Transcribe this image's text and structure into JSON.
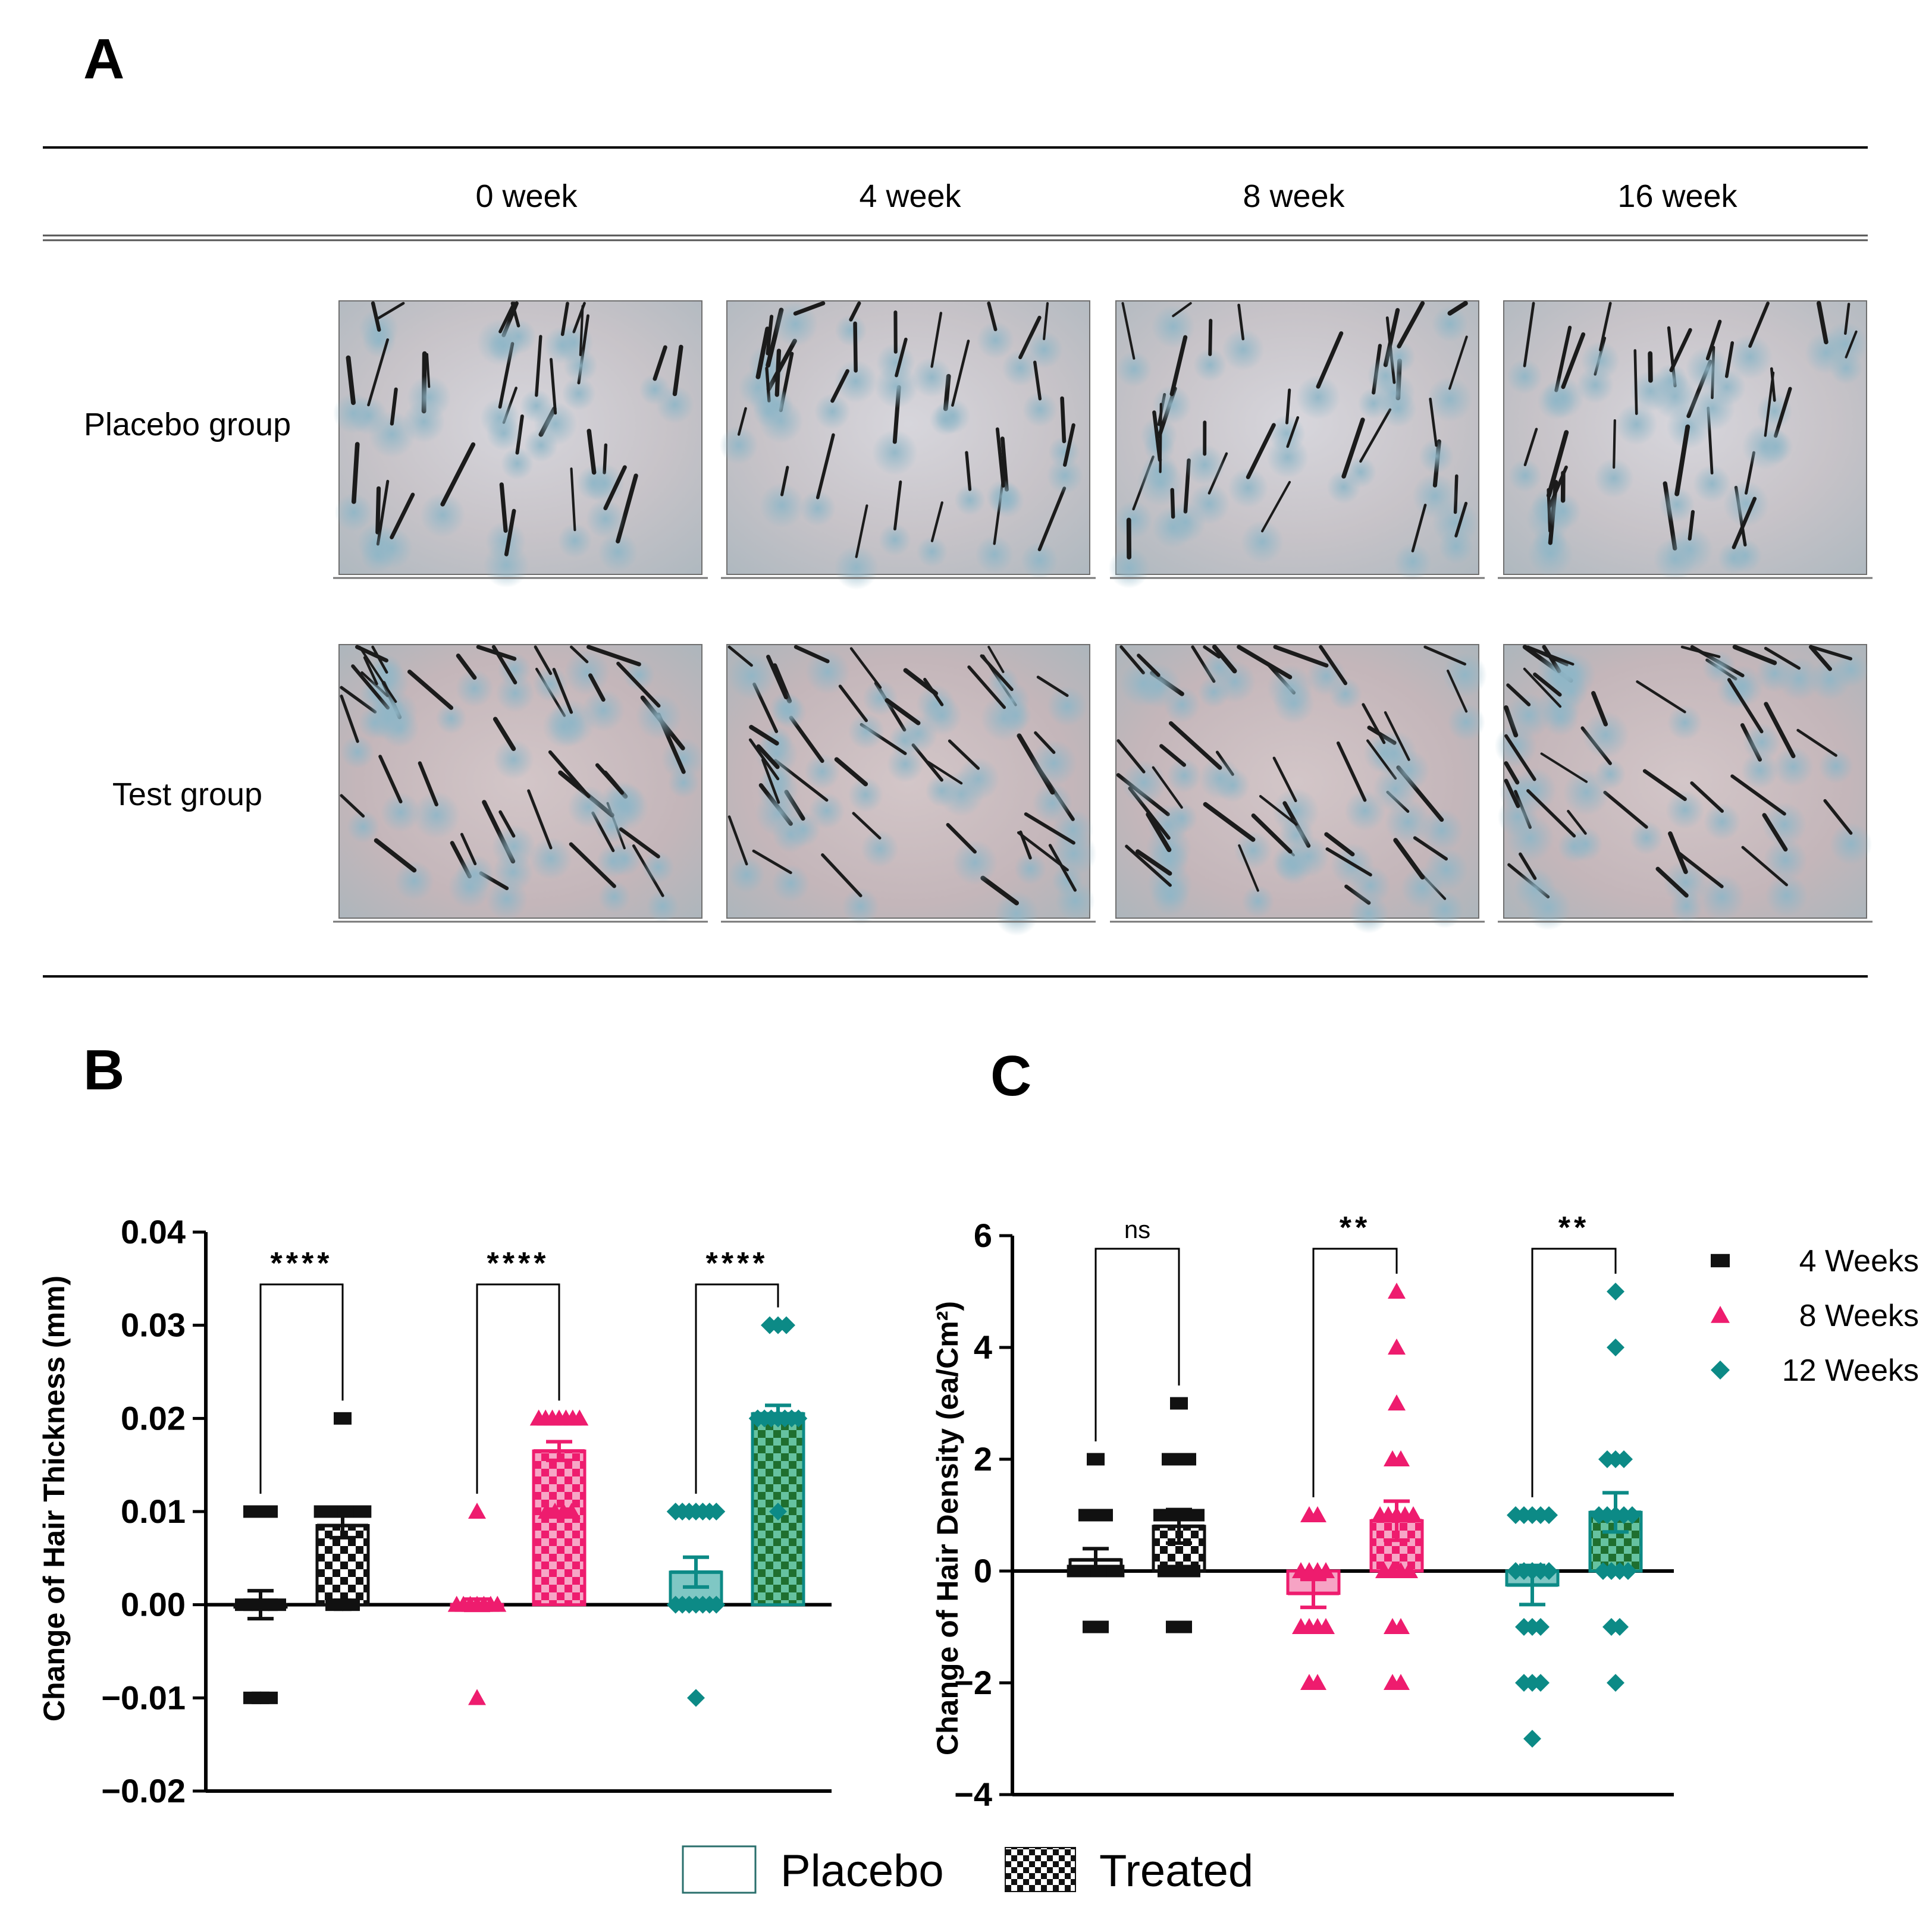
{
  "panel_a": {
    "letter": "A",
    "columns": [
      "0 week",
      "4 week",
      "8 week",
      "16 week"
    ],
    "rows": [
      "Placebo group",
      "Test group"
    ]
  },
  "panel_b": {
    "letter": "B"
  },
  "panel_c": {
    "letter": "C"
  },
  "colors": {
    "w4": "#111111",
    "w8": "#ee1c6e",
    "w12": "#0c8a86"
  },
  "chart_data": [
    {
      "type": "bar",
      "panel": "B",
      "ylabel": "Change of Hair Thickness (mm)",
      "ylim": [
        -0.02,
        0.04
      ],
      "yticks": [
        -0.02,
        -0.01,
        0.0,
        0.01,
        0.02,
        0.03,
        0.04
      ],
      "ytick_labels": [
        "−0.02",
        "−0.01",
        "0.00",
        "0.01",
        "0.02",
        "0.03",
        "0.04"
      ],
      "groups": [
        {
          "series": "4 Weeks",
          "color": "w4",
          "significance": "****",
          "bars": [
            {
              "condition": "Placebo",
              "mean": 0.0,
              "sem": 0.0015,
              "points": [
                0.01,
                0.01,
                0.01,
                0.0,
                0.0,
                0.0,
                0.0,
                0.0,
                -0.01,
                -0.01,
                -0.01
              ]
            },
            {
              "condition": "Treated",
              "mean": 0.0085,
              "sem": 0.0013,
              "points": [
                0.02,
                0.01,
                0.01,
                0.01,
                0.01,
                0.01,
                0.01,
                0.0,
                0.0,
                0.0
              ]
            }
          ]
        },
        {
          "series": "8 Weeks",
          "color": "w8",
          "significance": "****",
          "bars": [
            {
              "condition": "Placebo",
              "mean": 0.0,
              "sem": 0.0006,
              "points": [
                0.01,
                0.0,
                0.0,
                0.0,
                0.0,
                0.0,
                0.0,
                0.0,
                -0.01
              ]
            },
            {
              "condition": "Treated",
              "mean": 0.0165,
              "sem": 0.001,
              "points": [
                0.02,
                0.02,
                0.02,
                0.02,
                0.02,
                0.02,
                0.02,
                0.01,
                0.01,
                0.01,
                0.01
              ]
            }
          ]
        },
        {
          "series": "12 Weeks",
          "color": "w12",
          "significance": "****",
          "bars": [
            {
              "condition": "Placebo",
              "mean": 0.0035,
              "sem": 0.0016,
              "points": [
                0.01,
                0.01,
                0.01,
                0.01,
                0.01,
                0.01,
                0.01,
                0.0,
                0.0,
                0.0,
                0.0,
                0.0,
                0.0,
                0.0,
                -0.01
              ]
            },
            {
              "condition": "Treated",
              "mean": 0.0205,
              "sem": 0.0009,
              "points": [
                0.03,
                0.03,
                0.03,
                0.02,
                0.02,
                0.02,
                0.02,
                0.02,
                0.02,
                0.02,
                0.01
              ]
            }
          ]
        }
      ]
    },
    {
      "type": "bar",
      "panel": "C",
      "ylabel": "Change of  Hair Density (ea/Cm²)",
      "ylim": [
        -4,
        6
      ],
      "yticks": [
        -4,
        -2,
        0,
        2,
        4,
        6
      ],
      "ytick_labels": [
        "−4",
        "−2",
        "0",
        "2",
        "4",
        "6"
      ],
      "legend_position": "right",
      "groups": [
        {
          "series": "4 Weeks",
          "color": "w4",
          "significance": "ns",
          "bars": [
            {
              "condition": "Placebo",
              "mean": 0.2,
              "sem": 0.2,
              "points": [
                2,
                1,
                1,
                1,
                0,
                0,
                0,
                0,
                0,
                0,
                -1,
                -1
              ]
            },
            {
              "condition": "Treated",
              "mean": 0.8,
              "sem": 0.3,
              "points": [
                3,
                2,
                2,
                2,
                1,
                1,
                1,
                1,
                1,
                0,
                0,
                0,
                0,
                -1,
                -1
              ]
            }
          ]
        },
        {
          "series": "8 Weeks",
          "color": "w8",
          "significance": "**",
          "bars": [
            {
              "condition": "Placebo",
              "mean": -0.4,
              "sem": 0.25,
              "points": [
                1,
                1,
                0,
                0,
                0,
                0,
                -1,
                -1,
                -1,
                -1,
                -2,
                -2
              ]
            },
            {
              "condition": "Treated",
              "mean": 0.9,
              "sem": 0.35,
              "points": [
                5,
                4,
                3,
                2,
                2,
                1,
                1,
                1,
                1,
                1,
                0,
                0,
                0,
                0,
                -1,
                -1,
                -2,
                -2
              ]
            }
          ]
        },
        {
          "series": "12 Weeks",
          "color": "w12",
          "significance": "**",
          "bars": [
            {
              "condition": "Placebo",
              "mean": -0.25,
              "sem": 0.35,
              "points": [
                1,
                1,
                1,
                1,
                1,
                0,
                0,
                0,
                0,
                0,
                -1,
                -1,
                -1,
                -2,
                -2,
                -2,
                -3
              ]
            },
            {
              "condition": "Treated",
              "mean": 1.05,
              "sem": 0.35,
              "points": [
                5,
                4,
                2,
                2,
                2,
                1,
                1,
                1,
                1,
                1,
                0,
                0,
                0,
                0,
                -1,
                -1,
                -2
              ]
            }
          ]
        }
      ]
    }
  ],
  "legend": {
    "series": [
      {
        "label": "4 Weeks",
        "color": "w4",
        "marker": "square"
      },
      {
        "label": "8 Weeks",
        "color": "w8",
        "marker": "triangle"
      },
      {
        "label": "12 Weeks",
        "color": "w12",
        "marker": "diamond"
      }
    ],
    "conditions": [
      {
        "label": "Placebo",
        "pattern": "empty"
      },
      {
        "label": "Treated",
        "pattern": "checker"
      }
    ]
  }
}
